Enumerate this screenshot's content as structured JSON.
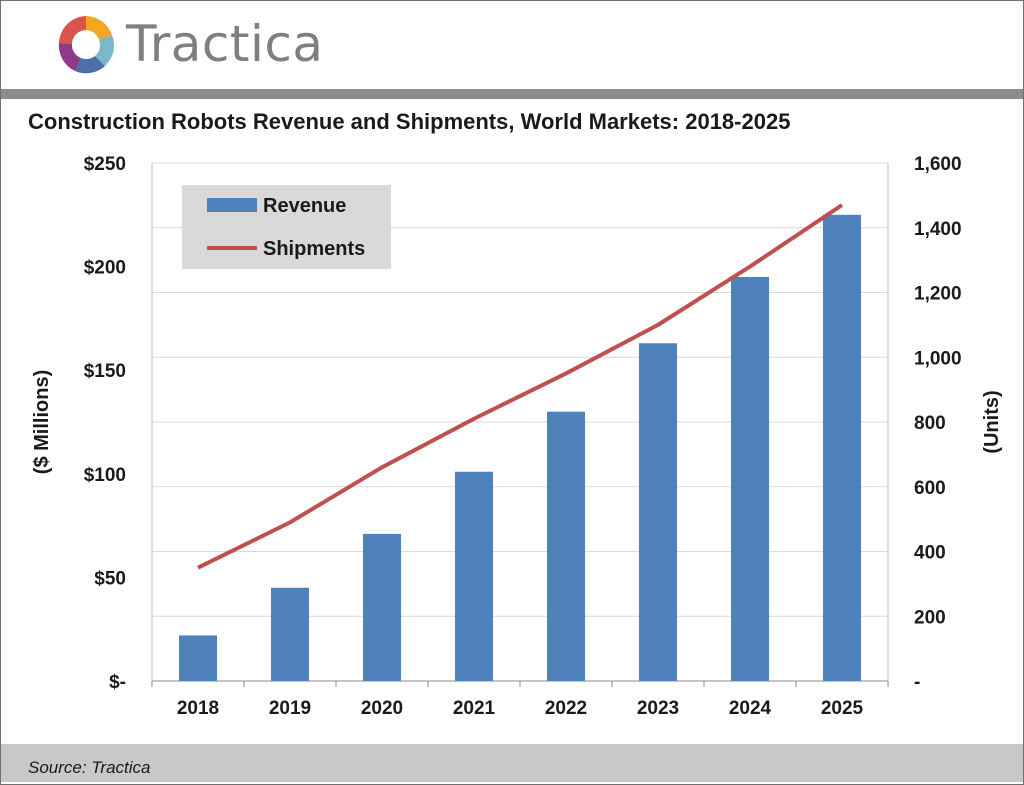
{
  "header": {
    "brand": "Tractica"
  },
  "colors": {
    "revenue_bar": "#4f81bd",
    "shipments_line": "#c0504d",
    "gridline": "#d9d9d9",
    "legend_bg": "#d9d9d9",
    "header_rule": "#8c8c8c",
    "footer_bg": "#c8c8c8"
  },
  "chart_data": {
    "type": "bar",
    "title": "Construction Robots Revenue and Shipments, World Markets: 2018-2025",
    "categories": [
      "2018",
      "2019",
      "2020",
      "2021",
      "2022",
      "2023",
      "2024",
      "2025"
    ],
    "series": [
      {
        "name": "Revenue",
        "type": "bar",
        "axis": "left",
        "values": [
          22,
          45,
          71,
          101,
          130,
          163,
          195,
          225
        ]
      },
      {
        "name": "Shipments",
        "type": "line",
        "axis": "right",
        "values": [
          350,
          490,
          660,
          810,
          950,
          1100,
          1280,
          1470
        ]
      }
    ],
    "y_left": {
      "label": "($ Millions)",
      "ylim": [
        0,
        250
      ],
      "ticks": [
        0,
        50,
        100,
        150,
        200,
        250
      ],
      "tick_labels": [
        "$-",
        "$50",
        "$100",
        "$150",
        "$200",
        "$250"
      ]
    },
    "y_right": {
      "label": "(Units)",
      "ylim": [
        0,
        1600
      ],
      "ticks": [
        0,
        200,
        400,
        600,
        800,
        1000,
        1200,
        1400,
        1600
      ],
      "tick_labels": [
        "-",
        "200",
        "400",
        "600",
        "800",
        "1,000",
        "1,200",
        "1,400",
        "1,600"
      ]
    },
    "grid": true,
    "legend_position": "top-left"
  },
  "footer": {
    "source": "Source: Tractica"
  }
}
